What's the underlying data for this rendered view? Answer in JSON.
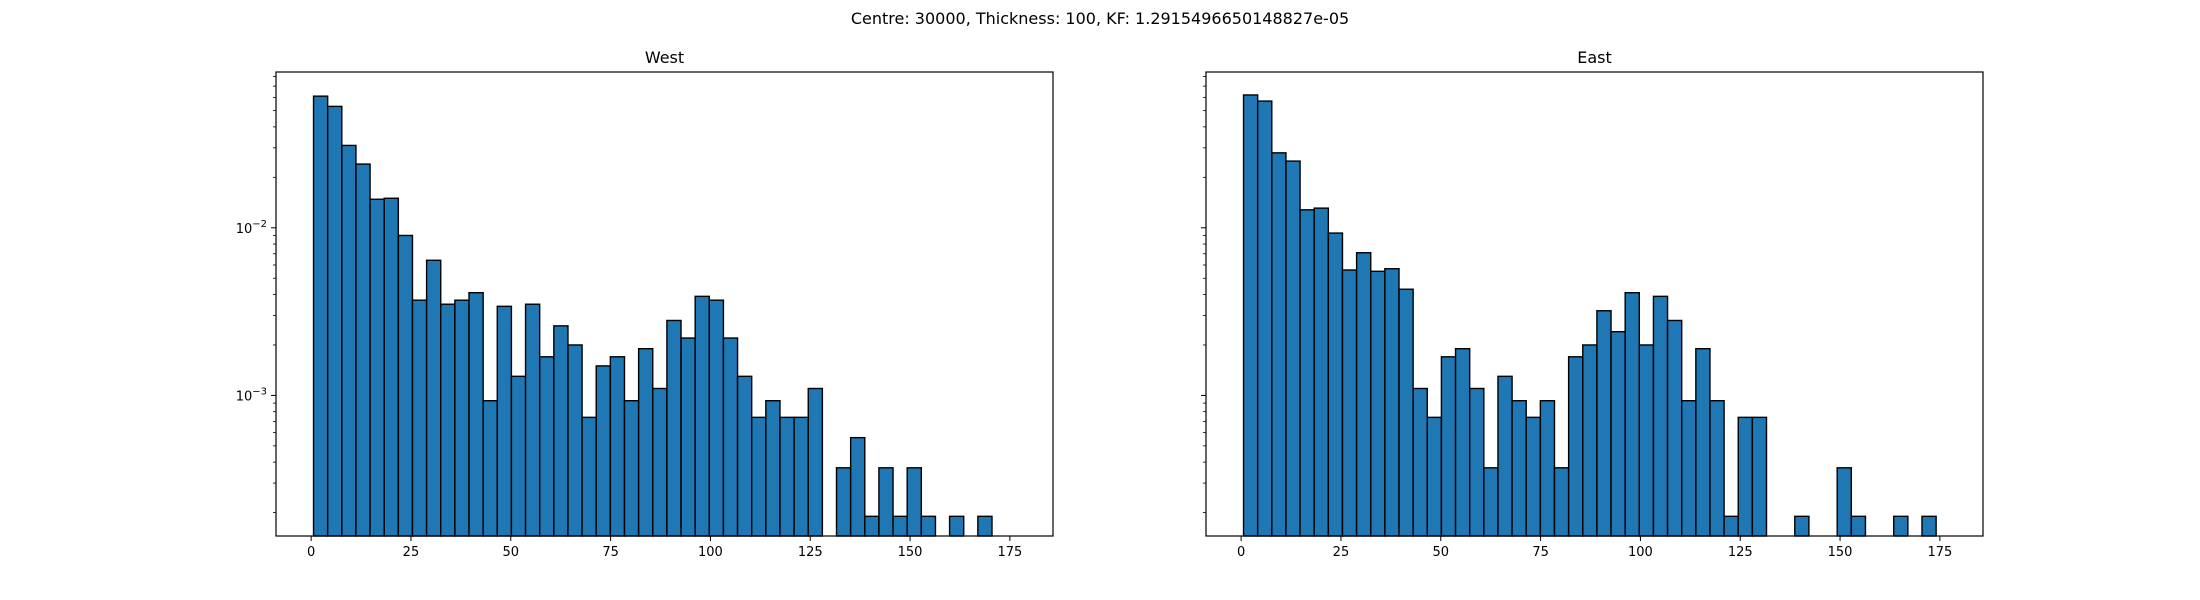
{
  "figure": {
    "suptitle": "Centre: 30000, Thickness: 100, KF: 1.2915496650148827e-05"
  },
  "chart_data": [
    {
      "type": "bar",
      "title": "West",
      "xlabel": "",
      "ylabel": "",
      "y_scale": "log",
      "xlim": [
        -8.8,
        185.8
      ],
      "ylim": [
        0.000145,
        0.085
      ],
      "x_ticks": [
        0,
        25,
        50,
        75,
        100,
        125,
        150,
        175
      ],
      "y_tick_labels": [
        {
          "mantissa": "10",
          "exponent": "−2",
          "value": 0.01
        },
        {
          "mantissa": "10",
          "exponent": "−3",
          "value": 0.001
        }
      ],
      "bin_width": 3.54,
      "bin_start": 0.6,
      "bar_color": "#1f77b4",
      "edge_color": "#000000",
      "values": [
        0.061,
        0.053,
        0.031,
        0.024,
        0.0148,
        0.015,
        0.009,
        0.0037,
        0.0064,
        0.0035,
        0.0037,
        0.0041,
        0.00093,
        0.0034,
        0.0013,
        0.0035,
        0.0017,
        0.0026,
        0.002,
        0.00074,
        0.0015,
        0.0017,
        0.00093,
        0.0019,
        0.0011,
        0.0028,
        0.0022,
        0.0039,
        0.0037,
        0.0022,
        0.0013,
        0.00074,
        0.00093,
        0.00074,
        0.00074,
        0.0011,
        0,
        0.00037,
        0.00056,
        0.00019,
        0.00037,
        0.00019,
        0.00037,
        0.00019,
        0,
        0.00019,
        0,
        0.00019,
        0,
        0
      ]
    },
    {
      "type": "bar",
      "title": "East",
      "xlabel": "",
      "ylabel": "",
      "y_scale": "log",
      "xlim": [
        -8.8,
        185.8
      ],
      "ylim": [
        0.000145,
        0.085
      ],
      "x_ticks": [
        0,
        25,
        50,
        75,
        100,
        125,
        150,
        175
      ],
      "y_tick_labels": [],
      "bin_width": 3.54,
      "bin_start": 0.6,
      "bar_color": "#1f77b4",
      "edge_color": "#000000",
      "values": [
        0.062,
        0.057,
        0.028,
        0.025,
        0.0128,
        0.0131,
        0.0093,
        0.0056,
        0.0071,
        0.0055,
        0.0057,
        0.0043,
        0.0011,
        0.00074,
        0.0017,
        0.0019,
        0.0011,
        0.00037,
        0.0013,
        0.00093,
        0.00074,
        0.00093,
        0.00037,
        0.0017,
        0.002,
        0.0032,
        0.0024,
        0.0041,
        0.002,
        0.0039,
        0.0028,
        0.00093,
        0.0019,
        0.00093,
        0.00019,
        0.00074,
        0.00074,
        0,
        0,
        0.00019,
        0,
        0,
        0.00037,
        0.00019,
        0,
        0,
        0.00019,
        0,
        0.00019,
        0
      ]
    }
  ]
}
